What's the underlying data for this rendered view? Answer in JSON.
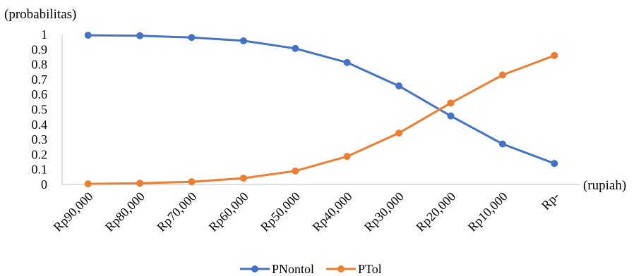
{
  "chart_data": {
    "type": "line",
    "ylabel": "(probabilitas)",
    "xlabel": "(rupiah)",
    "categories": [
      "Rp90,000",
      "Rp80,000",
      "Rp70,000",
      "Rp60,000",
      "Rp50,000",
      "Rp40,000",
      "Rp30,000",
      "Rp20,000",
      "Rp10,000",
      "Rp-"
    ],
    "y_ticks": [
      "0",
      "0.1",
      "0.2",
      "0.3",
      "0.4",
      "0.5",
      "0.6",
      "0.7",
      "0.8",
      "0.9",
      "1"
    ],
    "ylim": [
      0,
      1
    ],
    "grid": false,
    "legend_position": "bottom",
    "series": [
      {
        "name": "PNontol",
        "color": "#4472C4",
        "values": [
          0.995,
          0.992,
          0.98,
          0.958,
          0.907,
          0.813,
          0.657,
          0.457,
          0.27,
          0.14
        ]
      },
      {
        "name": "PTol",
        "color": "#ED7D31",
        "values": [
          0.004,
          0.008,
          0.018,
          0.042,
          0.09,
          0.187,
          0.343,
          0.543,
          0.73,
          0.86
        ]
      }
    ]
  }
}
